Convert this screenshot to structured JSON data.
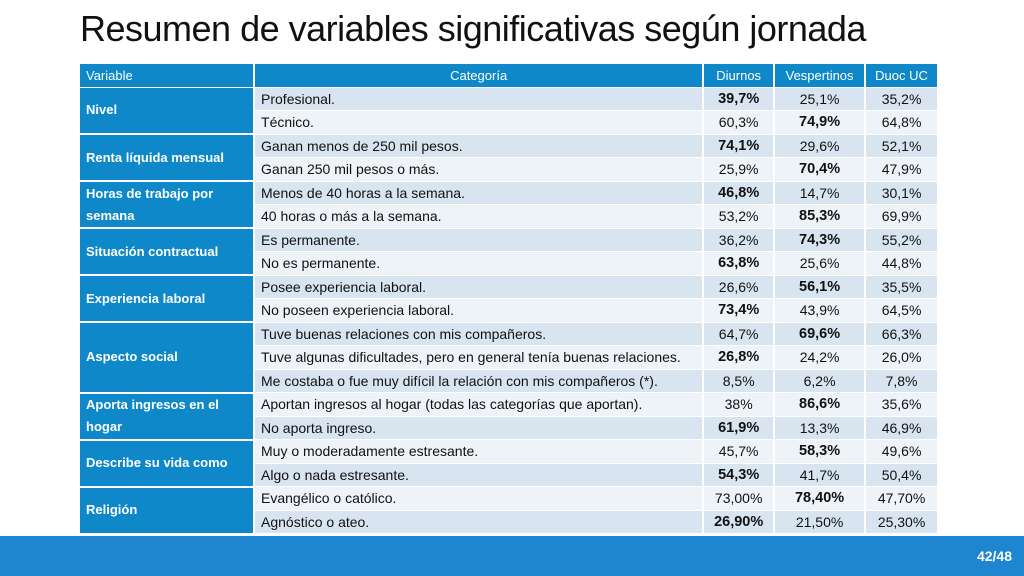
{
  "title": "Resumen de variables significativas según jornada",
  "headers": {
    "variable": "Variable",
    "categoria": "Categoría",
    "diurnos": "Diurnos",
    "vespertinos": "Vespertinos",
    "duoc": "Duoc UC"
  },
  "groups": [
    {
      "variable": "Nivel",
      "rows": [
        {
          "categoria": "Profesional.",
          "diurnos": "39,7%",
          "vespertinos": "25,1%",
          "duoc": "35,2%",
          "bold": "diurnos"
        },
        {
          "categoria": "Técnico.",
          "diurnos": "60,3%",
          "vespertinos": "74,9%",
          "duoc": "64,8%",
          "bold": "vespertinos"
        }
      ]
    },
    {
      "variable": "Renta líquida mensual",
      "rows": [
        {
          "categoria": "Ganan menos de 250 mil pesos.",
          "diurnos": "74,1%",
          "vespertinos": "29,6%",
          "duoc": "52,1%",
          "bold": "diurnos"
        },
        {
          "categoria": "Ganan 250 mil pesos o más.",
          "diurnos": "25,9%",
          "vespertinos": "70,4%",
          "duoc": "47,9%",
          "bold": "vespertinos"
        }
      ]
    },
    {
      "variable": "Horas de trabajo por semana",
      "rows": [
        {
          "categoria": "Menos de 40 horas a la semana.",
          "diurnos": "46,8%",
          "vespertinos": "14,7%",
          "duoc": "30,1%",
          "bold": "diurnos"
        },
        {
          "categoria": "40 horas o más a la semana.",
          "diurnos": "53,2%",
          "vespertinos": "85,3%",
          "duoc": "69,9%",
          "bold": "vespertinos"
        }
      ]
    },
    {
      "variable": "Situación contractual",
      "rows": [
        {
          "categoria": "Es permanente.",
          "diurnos": "36,2%",
          "vespertinos": "74,3%",
          "duoc": "55,2%",
          "bold": "vespertinos"
        },
        {
          "categoria": "No es permanente.",
          "diurnos": "63,8%",
          "vespertinos": "25,6%",
          "duoc": "44,8%",
          "bold": "diurnos"
        }
      ]
    },
    {
      "variable": "Experiencia laboral",
      "rows": [
        {
          "categoria": "Posee experiencia laboral.",
          "diurnos": "26,6%",
          "vespertinos": "56,1%",
          "duoc": "35,5%",
          "bold": "vespertinos"
        },
        {
          "categoria": "No poseen experiencia laboral.",
          "diurnos": "73,4%",
          "vespertinos": "43,9%",
          "duoc": "64,5%",
          "bold": "diurnos"
        }
      ]
    },
    {
      "variable": "Aspecto social",
      "rows": [
        {
          "categoria": "Tuve buenas relaciones con mis compañeros.",
          "diurnos": "64,7%",
          "vespertinos": "69,6%",
          "duoc": "66,3%",
          "bold": "vespertinos"
        },
        {
          "categoria": "Tuve algunas dificultades, pero en general tenía buenas relaciones.",
          "diurnos": "26,8%",
          "vespertinos": "24,2%",
          "duoc": "26,0%",
          "bold": "diurnos"
        },
        {
          "categoria": "Me costaba o fue muy difícil la relación con mis compañeros (*).",
          "diurnos": "8,5%",
          "vespertinos": "6,2%",
          "duoc": "7,8%",
          "bold": ""
        }
      ]
    },
    {
      "variable": "Aporta ingresos en el hogar",
      "rows": [
        {
          "categoria": "Aportan ingresos al hogar (todas las categorías que aportan).",
          "diurnos": "38%",
          "vespertinos": "86,6%",
          "duoc": "35,6%",
          "bold": "vespertinos"
        },
        {
          "categoria": "No aporta ingreso.",
          "diurnos": "61,9%",
          "vespertinos": "13,3%",
          "duoc": "46,9%",
          "bold": "diurnos"
        }
      ]
    },
    {
      "variable": "Describe su vida como",
      "rows": [
        {
          "categoria": "Muy o moderadamente estresante.",
          "diurnos": "45,7%",
          "vespertinos": "58,3%",
          "duoc": "49,6%",
          "bold": "vespertinos"
        },
        {
          "categoria": "Algo o nada estresante.",
          "diurnos": "54,3%",
          "vespertinos": "41,7%",
          "duoc": "50,4%",
          "bold": "diurnos"
        }
      ]
    },
    {
      "variable": "Religión",
      "rows": [
        {
          "categoria": "Evangélico o católico.",
          "diurnos": "73,00%",
          "vespertinos": "78,40%",
          "duoc": "47,70%",
          "bold": "vespertinos"
        },
        {
          "categoria": "Agnóstico o ateo.",
          "diurnos": "26,90%",
          "vespertinos": "21,50%",
          "duoc": "25,30%",
          "bold": "diurnos"
        }
      ]
    }
  ],
  "footer": {
    "page": "42/48"
  }
}
